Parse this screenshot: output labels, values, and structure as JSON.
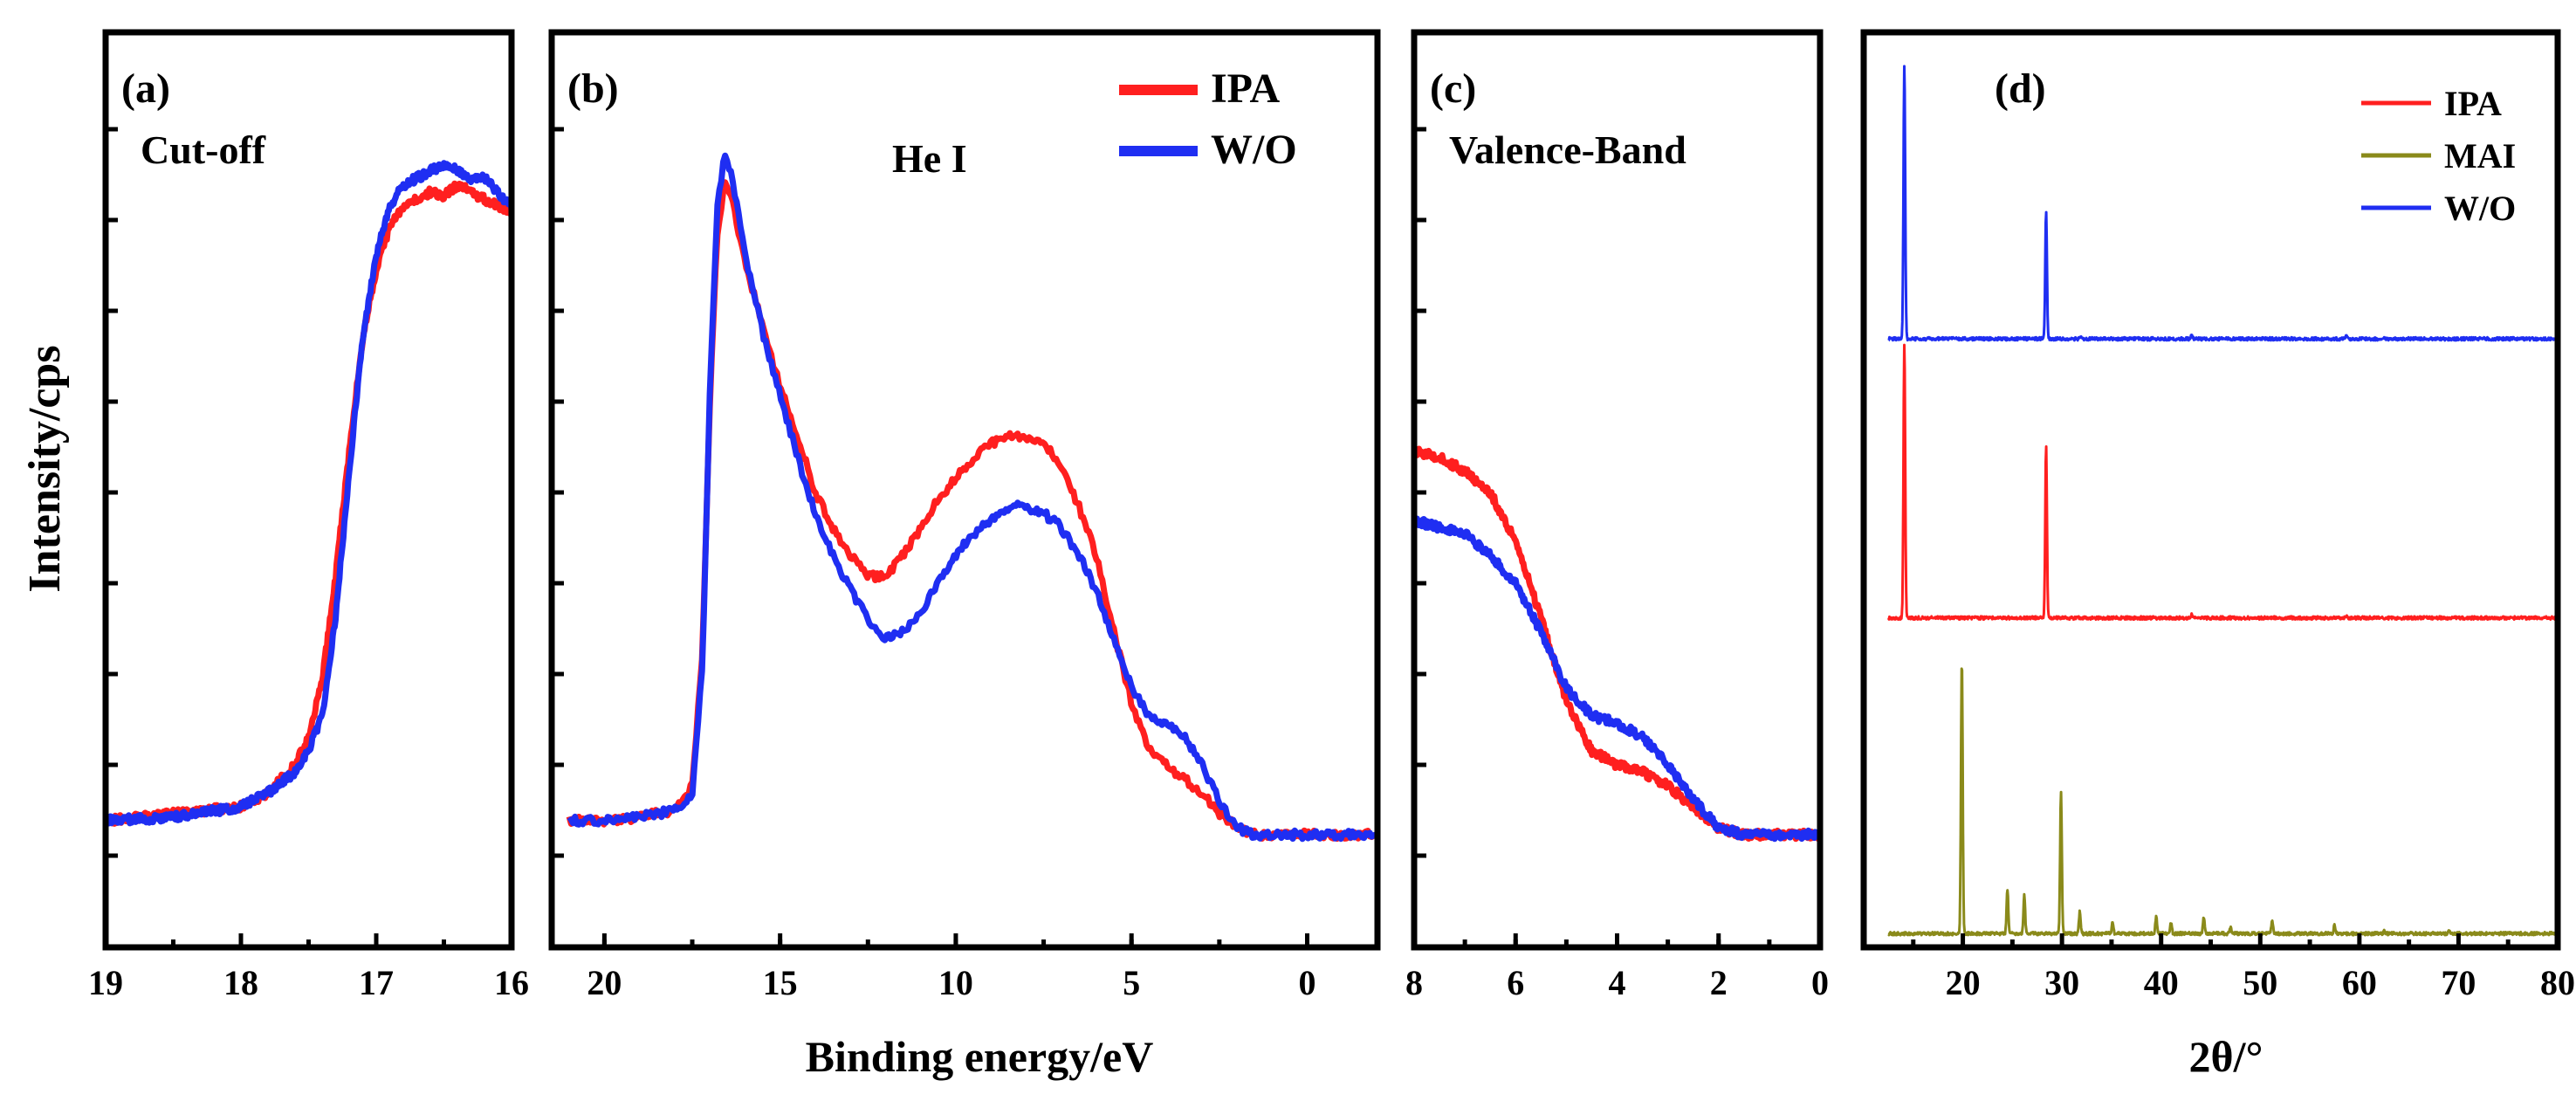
{
  "figure": {
    "ylabel": "Intensity/cps",
    "xlabel_main": "Binding energy/eV",
    "xlabel_d": "2θ/°"
  },
  "colors": {
    "IPA": "#ff1f1f",
    "W/O": "#1f2ef2",
    "MAI": "#8a8a1a"
  },
  "chart_data": [
    {
      "id": "a",
      "type": "line",
      "panel_label": "(a)",
      "annotation": "Cut-off",
      "xlim": [
        19,
        16
      ],
      "x_ticks": [
        "19",
        "18",
        "17",
        "16"
      ],
      "series": [
        {
          "name": "IPA",
          "color": "#ff1f1f",
          "x": [
            19.0,
            18.5,
            18.0,
            17.8,
            17.6,
            17.5,
            17.4,
            17.3,
            17.2,
            17.1,
            17.0,
            16.9,
            16.8,
            16.7,
            16.6,
            16.5,
            16.4,
            16.3,
            16.2,
            16.1,
            16.0
          ],
          "y": [
            0.05,
            0.06,
            0.07,
            0.09,
            0.13,
            0.17,
            0.25,
            0.4,
            0.58,
            0.74,
            0.84,
            0.9,
            0.93,
            0.94,
            0.95,
            0.945,
            0.96,
            0.95,
            0.94,
            0.93,
            0.92
          ]
        },
        {
          "name": "W/O",
          "color": "#1f2ef2",
          "x": [
            19.0,
            18.5,
            18.0,
            17.8,
            17.6,
            17.5,
            17.4,
            17.3,
            17.2,
            17.1,
            17.0,
            16.9,
            16.8,
            16.7,
            16.6,
            16.5,
            16.4,
            16.3,
            16.2,
            16.1,
            16.0
          ],
          "y": [
            0.05,
            0.055,
            0.07,
            0.09,
            0.12,
            0.15,
            0.2,
            0.34,
            0.55,
            0.74,
            0.86,
            0.93,
            0.96,
            0.97,
            0.98,
            0.99,
            0.98,
            0.97,
            0.97,
            0.95,
            0.93
          ]
        }
      ]
    },
    {
      "id": "b",
      "type": "line",
      "panel_label": "(b)",
      "annotation": "He I",
      "xlim": [
        21.5,
        -2
      ],
      "x_ticks": [
        "20",
        "15",
        "10",
        "5",
        "0"
      ],
      "x_tick_values": [
        20,
        15,
        10,
        5,
        0
      ],
      "legend": [
        "IPA",
        "W/O"
      ],
      "series": [
        {
          "name": "IPA",
          "color": "#ff1f1f",
          "x": [
            21.0,
            20.0,
            19.0,
            18.0,
            17.5,
            17.2,
            17.0,
            16.8,
            16.6,
            16.4,
            16.2,
            16.0,
            15.5,
            15.0,
            14.5,
            14.0,
            13.5,
            13.0,
            12.5,
            12.0,
            11.5,
            11.0,
            10.5,
            10.0,
            9.5,
            9.0,
            8.5,
            8.0,
            7.5,
            7.0,
            6.5,
            6.0,
            5.5,
            5.0,
            4.5,
            4.0,
            3.5,
            3.0,
            2.5,
            2.0,
            1.5,
            1.0,
            0.0,
            -1.0,
            -2.0
          ],
          "y": [
            0.05,
            0.05,
            0.055,
            0.065,
            0.1,
            0.3,
            0.65,
            0.88,
            0.96,
            0.95,
            0.9,
            0.85,
            0.76,
            0.67,
            0.6,
            0.52,
            0.47,
            0.43,
            0.4,
            0.4,
            0.43,
            0.47,
            0.51,
            0.54,
            0.57,
            0.59,
            0.6,
            0.6,
            0.59,
            0.56,
            0.5,
            0.43,
            0.32,
            0.22,
            0.15,
            0.13,
            0.11,
            0.09,
            0.06,
            0.04,
            0.03,
            0.03,
            0.03,
            0.03,
            0.03
          ]
        },
        {
          "name": "W/O",
          "color": "#1f2ef2",
          "x": [
            21.0,
            20.0,
            19.0,
            18.0,
            17.5,
            17.2,
            17.0,
            16.8,
            16.6,
            16.4,
            16.2,
            16.0,
            15.5,
            15.0,
            14.5,
            14.0,
            13.5,
            13.0,
            12.5,
            12.0,
            11.5,
            11.0,
            10.5,
            10.0,
            9.5,
            9.0,
            8.5,
            8.0,
            7.5,
            7.0,
            6.5,
            6.0,
            5.5,
            5.0,
            4.5,
            4.0,
            3.5,
            3.0,
            2.5,
            2.0,
            1.5,
            1.0,
            0.0,
            -1.0,
            -2.0
          ],
          "y": [
            0.05,
            0.05,
            0.055,
            0.065,
            0.09,
            0.28,
            0.66,
            0.92,
            1.0,
            0.98,
            0.92,
            0.86,
            0.75,
            0.66,
            0.57,
            0.49,
            0.43,
            0.38,
            0.34,
            0.31,
            0.32,
            0.35,
            0.39,
            0.43,
            0.46,
            0.48,
            0.5,
            0.5,
            0.49,
            0.47,
            0.43,
            0.38,
            0.31,
            0.24,
            0.2,
            0.19,
            0.17,
            0.13,
            0.08,
            0.04,
            0.03,
            0.03,
            0.03,
            0.03,
            0.03
          ]
        }
      ]
    },
    {
      "id": "c",
      "type": "line",
      "panel_label": "(c)",
      "annotation": "Valence-Band",
      "xlim": [
        8,
        0
      ],
      "x_ticks": [
        "8",
        "6",
        "4",
        "2",
        "0"
      ],
      "series": [
        {
          "name": "IPA",
          "color": "#ff1f1f",
          "x": [
            8.0,
            7.5,
            7.0,
            6.5,
            6.0,
            5.5,
            5.0,
            4.5,
            4.0,
            3.5,
            3.0,
            2.5,
            2.0,
            1.5,
            1.0,
            0.5,
            0.0
          ],
          "y": [
            0.58,
            0.57,
            0.55,
            0.52,
            0.45,
            0.34,
            0.22,
            0.15,
            0.13,
            0.12,
            0.1,
            0.07,
            0.04,
            0.03,
            0.03,
            0.03,
            0.03
          ]
        },
        {
          "name": "W/O",
          "color": "#1f2ef2",
          "x": [
            8.0,
            7.5,
            7.0,
            6.5,
            6.0,
            5.5,
            5.0,
            4.5,
            4.0,
            3.5,
            3.0,
            2.5,
            2.0,
            1.5,
            1.0,
            0.5,
            0.0
          ],
          "y": [
            0.48,
            0.47,
            0.46,
            0.43,
            0.39,
            0.32,
            0.24,
            0.2,
            0.19,
            0.17,
            0.13,
            0.08,
            0.04,
            0.03,
            0.03,
            0.03,
            0.03
          ]
        }
      ]
    },
    {
      "id": "d",
      "type": "line",
      "panel_label": "(d)",
      "xlim": [
        10,
        80
      ],
      "x_ticks": [
        "20",
        "30",
        "40",
        "50",
        "60",
        "70",
        "80"
      ],
      "x_tick_values": [
        20,
        30,
        40,
        50,
        60,
        70,
        80
      ],
      "legend": [
        "IPA",
        "MAI",
        "W/O"
      ],
      "series": [
        {
          "name": "W/O",
          "color": "#1f2ef2",
          "baseline": 0.665,
          "height": 0.3,
          "peaks": [
            [
              14.1,
              1.0
            ],
            [
              28.4,
              0.47
            ],
            [
              31.9,
              0.01
            ],
            [
              43.1,
              0.015
            ],
            [
              58.7,
              0.01
            ]
          ]
        },
        {
          "name": "IPA",
          "color": "#ff1f1f",
          "baseline": 0.36,
          "height": 0.3,
          "peaks": [
            [
              14.1,
              1.0
            ],
            [
              28.4,
              0.63
            ],
            [
              43.1,
              0.012
            ],
            [
              58.7,
              0.012
            ]
          ]
        },
        {
          "name": "MAI",
          "color": "#8a8a1a",
          "baseline": 0.015,
          "height": 0.3,
          "peaks": [
            [
              19.9,
              1.0
            ],
            [
              24.5,
              0.16
            ],
            [
              26.2,
              0.14
            ],
            [
              29.9,
              0.52
            ],
            [
              31.8,
              0.08
            ],
            [
              35.1,
              0.04
            ],
            [
              39.5,
              0.06
            ],
            [
              41.0,
              0.04
            ],
            [
              44.3,
              0.06
            ],
            [
              47.0,
              0.02
            ],
            [
              51.2,
              0.05
            ],
            [
              57.5,
              0.03
            ],
            [
              62.5,
              0.01
            ],
            [
              69.0,
              0.01
            ]
          ]
        }
      ]
    }
  ]
}
